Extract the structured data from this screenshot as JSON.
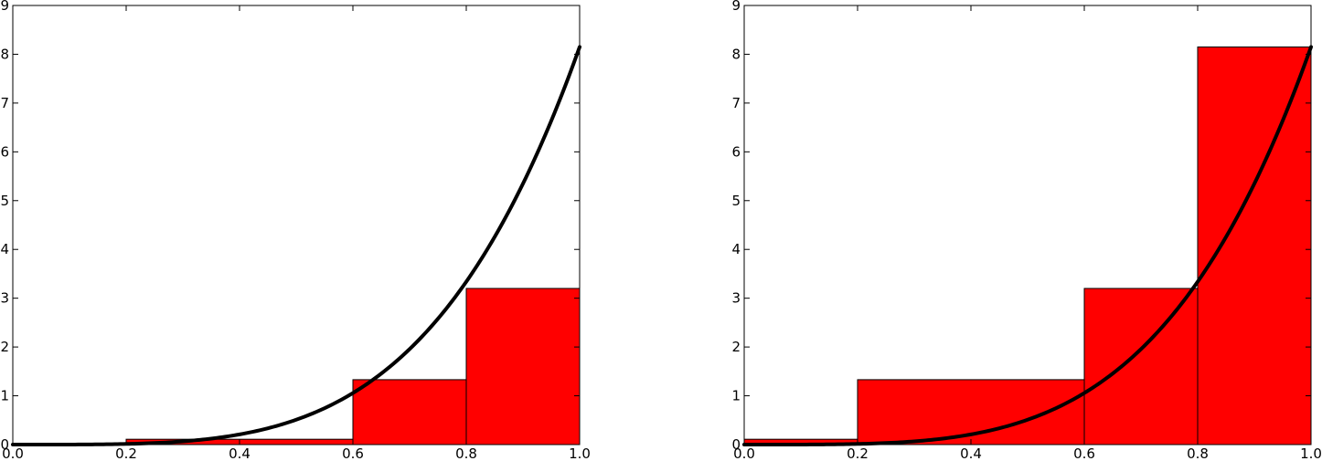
{
  "colors": {
    "bar_fill": "#ff0000",
    "bar_edge": "#000000",
    "curve": "#000000",
    "axes": "#000000",
    "background": "#ffffff"
  },
  "chart_data": [
    {
      "type": "bar",
      "title": "",
      "xlabel": "",
      "ylabel": "",
      "xlim": [
        0,
        1
      ],
      "ylim": [
        0,
        9
      ],
      "grid": false,
      "x_ticks": [
        "0.0",
        "0.2",
        "0.4",
        "0.6",
        "0.8",
        "1.0"
      ],
      "y_ticks": [
        "0",
        "1",
        "2",
        "3",
        "4",
        "5",
        "6",
        "7",
        "8",
        "9"
      ],
      "bars": [
        {
          "x0": 0.0,
          "x1": 0.2,
          "height": 0.0
        },
        {
          "x0": 0.2,
          "x1": 0.6,
          "height": 0.109
        },
        {
          "x0": 0.6,
          "x1": 0.8,
          "height": 1.33
        },
        {
          "x0": 0.8,
          "x1": 1.0,
          "height": 3.2
        }
      ],
      "curve": {
        "formula": "8.15*x^4",
        "x_range": [
          0,
          1
        ],
        "y_end": 8.15
      }
    },
    {
      "type": "bar",
      "title": "",
      "xlabel": "",
      "ylabel": "",
      "xlim": [
        0,
        1
      ],
      "ylim": [
        0,
        9
      ],
      "grid": false,
      "x_ticks": [
        "0.0",
        "0.2",
        "0.4",
        "0.6",
        "0.8",
        "1.0"
      ],
      "y_ticks": [
        "0",
        "1",
        "2",
        "3",
        "4",
        "5",
        "6",
        "7",
        "8",
        "9"
      ],
      "bars": [
        {
          "x0": 0.0,
          "x1": 0.2,
          "height": 0.109
        },
        {
          "x0": 0.2,
          "x1": 0.6,
          "height": 1.33
        },
        {
          "x0": 0.6,
          "x1": 0.8,
          "height": 3.2
        },
        {
          "x0": 0.8,
          "x1": 1.0,
          "height": 8.15
        }
      ],
      "curve": {
        "formula": "8.15*x^4",
        "x_range": [
          0,
          1
        ],
        "y_end": 8.15
      }
    }
  ]
}
